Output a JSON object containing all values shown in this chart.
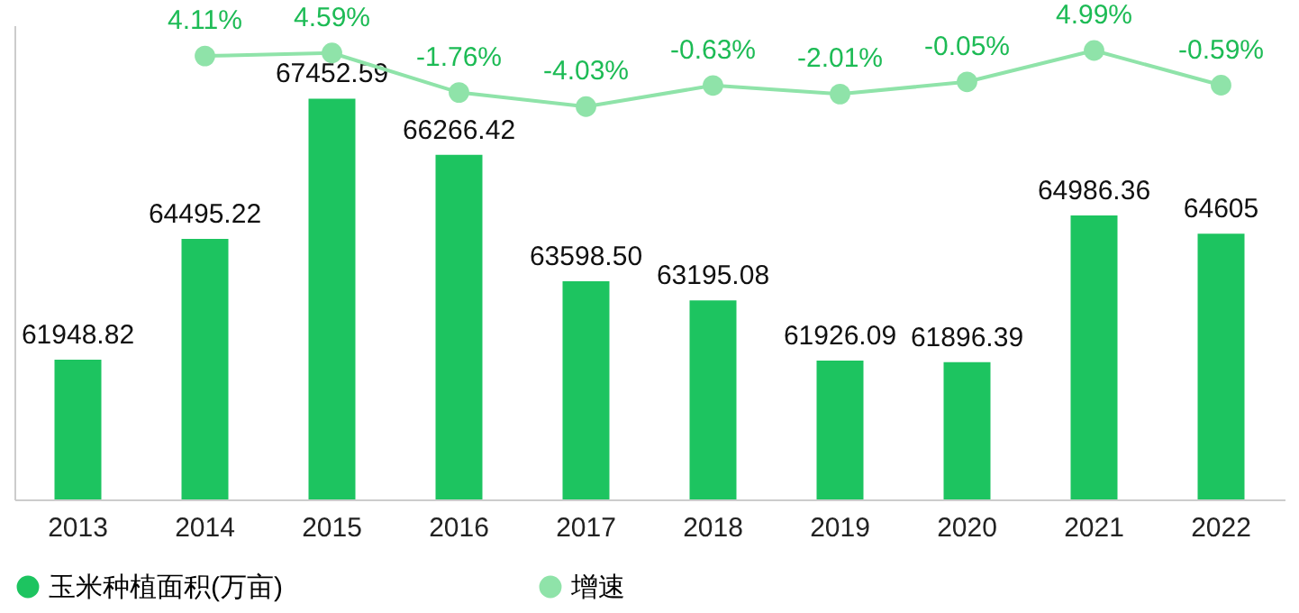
{
  "chart_data": {
    "type": "bar",
    "categories": [
      "2013",
      "2014",
      "2015",
      "2016",
      "2017",
      "2018",
      "2019",
      "2020",
      "2021",
      "2022"
    ],
    "series": [
      {
        "name": "玉米种植面积(万亩)",
        "color": "#1dc460",
        "values": [
          61948.82,
          64495.22,
          67452.59,
          66266.42,
          63598.5,
          63195.08,
          61926.09,
          61896.39,
          64986.36,
          64605
        ],
        "value_labels": [
          "61948.82",
          "64495.22",
          "67452.59",
          "66266.42",
          "63598.50",
          "63195.08",
          "61926.09",
          "61896.39",
          "64986.36",
          "64605"
        ]
      },
      {
        "name": "增速",
        "type": "line",
        "axis": "y2",
        "color": "#8fe3a9",
        "values": [
          null,
          4.11,
          4.59,
          -1.76,
          -4.03,
          -0.63,
          -2.01,
          -0.05,
          4.99,
          -0.59
        ],
        "value_labels": [
          null,
          "4.11%",
          "4.59%",
          "-1.76%",
          "-4.03%",
          "-0.63%",
          "-2.01%",
          "-0.05%",
          "4.99%",
          "-0.59%"
        ]
      }
    ],
    "ylim": [
      59000,
      69000
    ],
    "tick_labels": "x",
    "legend": "bottom",
    "marker": "circle",
    "grid": false
  }
}
